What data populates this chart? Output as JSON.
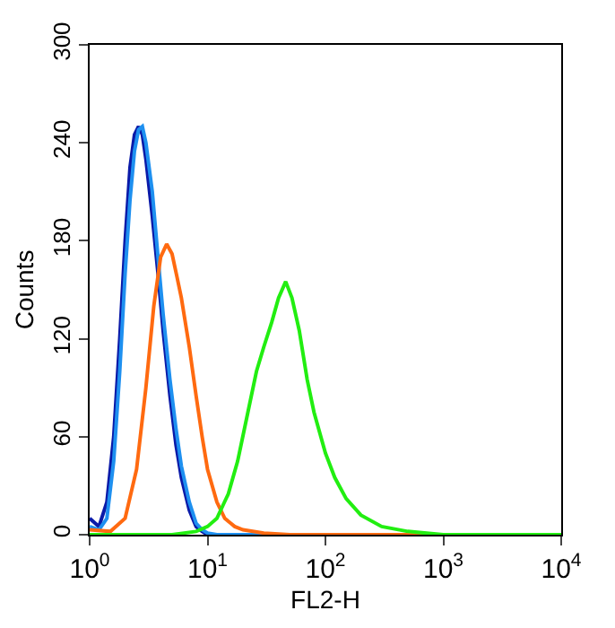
{
  "chart_data": {
    "type": "line",
    "xlabel": "FL2-H",
    "ylabel": "Counts",
    "log": "x",
    "grid": false,
    "marker": "none",
    "line_style": "solid",
    "xlim": [
      1,
      10000
    ],
    "xticks": [
      {
        "value": 1,
        "label": "10$^{0}$"
      },
      {
        "value": 10,
        "label": "10$^{1}$"
      },
      {
        "value": 100,
        "label": "10$^{2}$"
      },
      {
        "value": 1000,
        "label": "10$^{3}$"
      },
      {
        "value": 10000,
        "label": "10$^{4}$"
      }
    ],
    "ylim": [
      0,
      300
    ],
    "yticks": [
      0,
      60,
      120,
      180,
      240,
      300
    ],
    "series": [
      {
        "color": "#0a1aa8",
        "x": [
          1,
          1.2,
          1.4,
          1.6,
          1.8,
          2,
          2.2,
          2.4,
          2.6,
          2.8,
          3,
          3.4,
          3.8,
          4.2,
          4.8,
          5.4,
          6,
          7,
          8,
          9,
          10,
          12,
          10000
        ],
        "values": [
          10,
          5,
          20,
          60,
          120,
          180,
          225,
          245,
          250,
          245,
          230,
          195,
          160,
          125,
          85,
          55,
          35,
          15,
          5,
          2,
          0,
          0,
          0
        ]
      },
      {
        "color": "#1e90f0",
        "x": [
          1,
          1.2,
          1.4,
          1.6,
          1.8,
          2,
          2.2,
          2.4,
          2.6,
          2.8,
          3,
          3.4,
          3.8,
          4.2,
          4.8,
          5.4,
          6,
          7,
          8,
          9,
          10,
          12,
          10000
        ],
        "values": [
          5,
          3,
          10,
          45,
          100,
          160,
          205,
          235,
          248,
          250,
          240,
          210,
          170,
          135,
          95,
          65,
          42,
          20,
          7,
          3,
          1,
          0,
          0
        ]
      },
      {
        "color": "#ff6a10",
        "x": [
          1,
          1.5,
          2,
          2.5,
          3,
          3.5,
          4,
          4.5,
          5,
          5.5,
          6,
          7,
          8,
          9,
          10,
          12,
          14,
          17,
          20,
          30,
          50,
          10000
        ],
        "values": [
          3,
          2,
          10,
          40,
          90,
          140,
          170,
          178,
          172,
          158,
          145,
          115,
          85,
          60,
          40,
          20,
          10,
          5,
          3,
          1,
          0,
          0
        ]
      },
      {
        "color": "#22ee11",
        "x": [
          1,
          5,
          8,
          10,
          12,
          15,
          18,
          22,
          26,
          30,
          35,
          40,
          46,
          52,
          60,
          70,
          80,
          100,
          120,
          150,
          200,
          300,
          500,
          1000,
          10000
        ],
        "values": [
          0,
          0,
          2,
          5,
          10,
          25,
          45,
          75,
          100,
          115,
          130,
          145,
          155,
          145,
          125,
          95,
          75,
          50,
          35,
          22,
          12,
          5,
          2,
          0,
          0
        ]
      }
    ]
  }
}
